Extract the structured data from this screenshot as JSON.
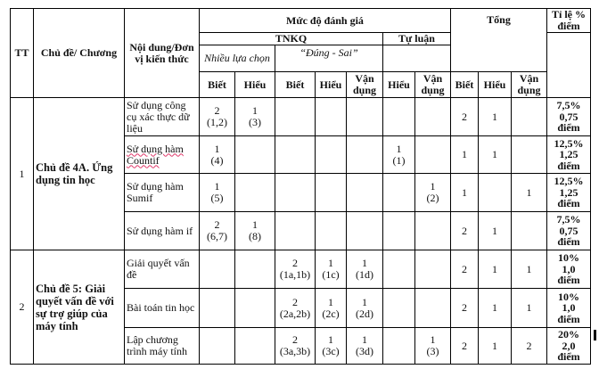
{
  "header": {
    "tt": "TT",
    "topic": "Chủ đề/ Chương",
    "content": "Nội dung/Đơn vị kiến thức",
    "level": "Mức độ đánh giá",
    "total": "Tổng",
    "ratio": "Tỉ lệ % điểm",
    "tnkq": "TNKQ",
    "tu_luan": "Tự luận",
    "multiple_choice": "Nhiều lựa chọn",
    "true_false": "“Đúng - Sai”",
    "cols": [
      "Biết",
      "Hiểu",
      "Biết",
      "Hiểu",
      "Vận dụng",
      "Hiểu",
      "Vận dụng",
      "Biết",
      "Hiểu",
      "Vận dụng"
    ]
  },
  "groups": [
    {
      "tt": "1",
      "topic": "Chủ đề 4A. Ứng dụng tin học",
      "rows": [
        {
          "content": "Sử dụng công cụ xác thực dữ liệu",
          "spell_flag": false,
          "cells": [
            "2\n(1,2)",
            "1\n(3)",
            "",
            "",
            "",
            "",
            "",
            "2",
            "1",
            ""
          ],
          "ratio": [
            "7,5%",
            "0,75",
            "điểm"
          ]
        },
        {
          "content": "Sử dụng hàm Countif",
          "spell_flag": true,
          "cells": [
            "1\n(4)",
            "",
            "",
            "",
            "",
            "1\n(1)",
            "",
            "1",
            "1",
            ""
          ],
          "ratio": [
            "12,5%",
            "1,25",
            "điểm"
          ]
        },
        {
          "content": "Sử dụng hàm Sumif",
          "spell_flag": false,
          "cells": [
            "1\n(5)",
            "",
            "",
            "",
            "",
            "",
            "1\n(2)",
            "1",
            "",
            "1"
          ],
          "ratio": [
            "12,5%",
            "1,25",
            "điểm"
          ]
        },
        {
          "content": "Sử dụng hàm if",
          "spell_flag": false,
          "cells": [
            "2\n(6,7)",
            "1\n(8)",
            "",
            "",
            "",
            "",
            "",
            "2",
            "1",
            ""
          ],
          "ratio": [
            "7,5%",
            "0,75",
            "điểm"
          ]
        }
      ]
    },
    {
      "tt": "2",
      "topic": "Chủ đề 5: Giải quyết vấn đề với sự trợ giúp của máy tính",
      "rows": [
        {
          "content": "Giải quyết vấn đề",
          "spell_flag": false,
          "cells": [
            "",
            "",
            "2\n(1a,1b)",
            "1\n(1c)",
            "1\n(1d)",
            "",
            "",
            "2",
            "1",
            "1"
          ],
          "ratio": [
            "10%",
            "1,0",
            "điểm"
          ]
        },
        {
          "content": "Bài toán tin học",
          "spell_flag": false,
          "cells": [
            "",
            "",
            "2\n(2a,2b)",
            "1\n(2c)",
            "1\n(2d)",
            "",
            "",
            "2",
            "1",
            "1"
          ],
          "ratio": [
            "10%",
            "1,0",
            "điểm"
          ]
        },
        {
          "content": "Lập chương trình máy tính",
          "spell_flag": false,
          "cells": [
            "",
            "",
            "2\n(3a,3b)",
            "1\n(3c)",
            "1\n(3d)",
            "",
            "1\n(3)",
            "2",
            "1",
            "2"
          ],
          "ratio": [
            "20%",
            "2,0",
            "điểm"
          ]
        }
      ]
    }
  ]
}
